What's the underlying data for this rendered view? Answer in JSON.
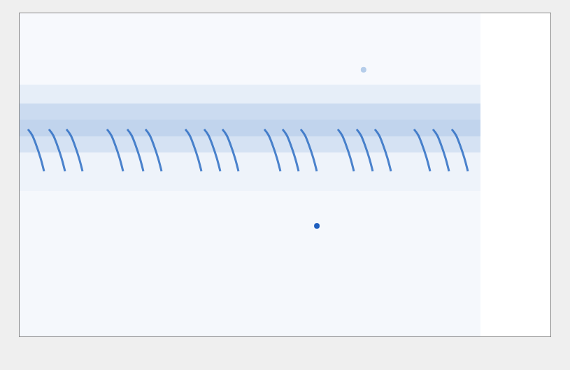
{
  "chart_data": {
    "type": "spectrogram",
    "xlim": [
      0,
      100
    ],
    "ylim": [
      0,
      100
    ],
    "tick_labels": false,
    "grid": false,
    "background": {
      "type": "heatmap",
      "x": [
        0,
        86.8
      ],
      "y": [
        0,
        45,
        57,
        62,
        67,
        72,
        78,
        100
      ],
      "cells": [
        [
          0.05
        ],
        [
          0.08
        ],
        [
          0.2
        ],
        [
          0.3
        ],
        [
          0.25
        ],
        [
          0.12
        ],
        [
          0.04
        ]
      ],
      "zlim": [
        0,
        1
      ]
    },
    "series": [
      {
        "type": "line",
        "color": "#2f6fc4",
        "x": [
          1.58,
          2.37,
          3.16,
          3.95,
          4.61,
          4.61,
          5.53,
          6.32,
          7.11,
          7.9,
          8.56,
          8.56,
          8.83,
          9.62,
          10.41,
          11.2,
          11.86,
          11.86,
          16.47,
          17.26,
          18.05,
          18.84,
          19.5,
          19.5,
          20.29,
          21.08,
          21.87,
          22.66,
          23.32,
          23.32,
          23.72,
          24.51,
          25.3,
          26.09,
          26.75,
          26.75,
          31.23,
          32.02,
          32.81,
          33.6,
          34.26,
          34.26,
          34.78,
          35.57,
          36.36,
          37.15,
          37.81,
          37.81,
          38.21,
          39.0,
          39.79,
          40.58,
          41.24,
          41.24,
          46.11,
          46.9,
          47.69,
          48.48,
          49.14,
          49.14,
          49.54,
          50.33,
          51.12,
          51.91,
          52.57,
          52.57,
          52.96,
          53.75,
          54.54,
          55.33,
          55.99,
          55.99,
          59.95,
          60.74,
          61.53,
          62.32,
          62.98,
          62.98,
          63.5,
          64.29,
          65.08,
          65.87,
          66.53,
          66.53,
          66.93,
          67.72,
          68.51,
          69.3,
          69.96,
          69.96,
          74.31,
          75.1,
          75.89,
          76.68,
          77.34,
          77.34,
          77.87,
          78.66,
          79.45,
          80.24,
          80.9,
          80.9,
          81.42,
          82.21,
          83.0,
          83.79,
          84.45
        ],
        "values": [
          64.1,
          62.3,
          59.1,
          55.2,
          51.1,
          null,
          64.1,
          62.3,
          59.1,
          55.2,
          51.1,
          null,
          64.1,
          62.3,
          59.1,
          55.2,
          51.1,
          null,
          64.1,
          62.3,
          59.1,
          55.2,
          51.1,
          null,
          64.1,
          62.3,
          59.1,
          55.2,
          51.1,
          null,
          64.1,
          62.3,
          59.1,
          55.2,
          51.1,
          null,
          64.1,
          62.3,
          59.1,
          55.2,
          51.1,
          null,
          64.1,
          62.3,
          59.1,
          55.2,
          51.1,
          null,
          64.1,
          62.3,
          59.1,
          55.2,
          51.1,
          null,
          64.1,
          62.3,
          59.1,
          55.2,
          51.1,
          null,
          64.1,
          62.3,
          59.1,
          55.2,
          51.1,
          null,
          64.1,
          62.3,
          59.1,
          55.2,
          51.1,
          null,
          64.1,
          62.3,
          59.1,
          55.2,
          51.1,
          null,
          64.1,
          62.3,
          59.1,
          55.2,
          51.1,
          null,
          64.1,
          62.3,
          59.1,
          55.2,
          51.1,
          null,
          64.1,
          62.3,
          59.1,
          55.2,
          51.1,
          null,
          64.1,
          62.3,
          59.1,
          55.2,
          51.1,
          null,
          64.1,
          62.3,
          59.1,
          55.2,
          51.1
        ]
      },
      {
        "type": "scatter",
        "colors": [
          "#1f5fbf",
          "#b5cdea"
        ],
        "x": [
          56.0,
          64.8
        ],
        "values": [
          34.2,
          82.5
        ]
      }
    ]
  }
}
